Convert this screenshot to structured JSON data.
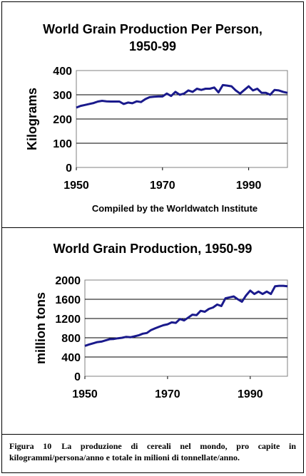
{
  "figure": {
    "caption_label": "Figura 10",
    "caption_text": "La produzione di cereali nel mondo, pro capite in kilogrammi/persona/anno e totale in milioni di tonnellate/anno."
  },
  "chart_data": [
    {
      "type": "line",
      "title_line1": "World Grain Production Per Person,",
      "title_line2": "1950-99",
      "ylabel": "Kilograms",
      "note": "Compiled by the Worldwatch Institute",
      "ylim": [
        0,
        400
      ],
      "xlim": [
        1950,
        1999
      ],
      "yticks": [
        "0",
        "100",
        "200",
        "300",
        "400"
      ],
      "xticks": [
        "1950",
        "1970",
        "1990"
      ],
      "grid": "horizontal",
      "color": "#1a1a8c",
      "series": [
        {
          "x": [
            1950,
            1951,
            1952,
            1953,
            1954,
            1955,
            1956,
            1957,
            1958,
            1959,
            1960,
            1961,
            1962,
            1963,
            1964,
            1965,
            1966,
            1967,
            1968,
            1969,
            1970,
            1971,
            1972,
            1973,
            1974,
            1975,
            1976,
            1977,
            1978,
            1979,
            1980,
            1981,
            1982,
            1983,
            1984,
            1985,
            1986,
            1987,
            1988,
            1989,
            1990,
            1991,
            1992,
            1993,
            1994,
            1995,
            1996,
            1997,
            1998,
            1999
          ],
          "y": [
            247,
            254,
            258,
            262,
            266,
            272,
            275,
            273,
            272,
            272,
            272,
            262,
            268,
            265,
            273,
            270,
            282,
            290,
            292,
            293,
            293,
            305,
            295,
            312,
            300,
            305,
            318,
            312,
            325,
            320,
            325,
            325,
            330,
            310,
            340,
            338,
            335,
            318,
            305,
            320,
            335,
            318,
            325,
            308,
            308,
            300,
            320,
            318,
            312,
            308
          ]
        }
      ]
    },
    {
      "type": "line",
      "title": "World Grain Production, 1950-99",
      "ylabel": "million tons",
      "ylim": [
        0,
        2000
      ],
      "xlim": [
        1950,
        1999
      ],
      "yticks": [
        "0",
        "400",
        "800",
        "1200",
        "1600",
        "2000"
      ],
      "xticks": [
        "1950",
        "1970",
        "1990"
      ],
      "grid": "horizontal",
      "color": "#1a1a8c",
      "series": [
        {
          "x": [
            1950,
            1951,
            1952,
            1953,
            1954,
            1955,
            1956,
            1957,
            1958,
            1959,
            1960,
            1961,
            1962,
            1963,
            1964,
            1965,
            1966,
            1967,
            1968,
            1969,
            1970,
            1971,
            1972,
            1973,
            1974,
            1975,
            1976,
            1977,
            1978,
            1979,
            1980,
            1981,
            1982,
            1983,
            1984,
            1985,
            1986,
            1987,
            1988,
            1989,
            1990,
            1991,
            1992,
            1993,
            1994,
            1995,
            1996,
            1997,
            1998,
            1999
          ],
          "y": [
            631,
            660,
            685,
            710,
            720,
            745,
            770,
            775,
            790,
            800,
            820,
            810,
            830,
            850,
            885,
            900,
            960,
            995,
            1030,
            1060,
            1080,
            1120,
            1110,
            1190,
            1160,
            1220,
            1280,
            1270,
            1360,
            1340,
            1400,
            1430,
            1490,
            1460,
            1620,
            1640,
            1660,
            1600,
            1550,
            1680,
            1780,
            1710,
            1760,
            1710,
            1760,
            1710,
            1870,
            1880,
            1880,
            1870
          ]
        }
      ]
    }
  ]
}
